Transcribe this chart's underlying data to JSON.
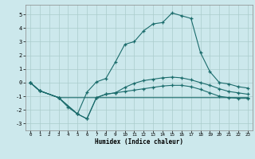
{
  "title": "",
  "xlabel": "Humidex (Indice chaleur)",
  "background_color": "#cce8ec",
  "grid_color": "#aacccc",
  "line_color": "#1a6b6b",
  "xlim": [
    -0.5,
    23.5
  ],
  "ylim": [
    -3.5,
    5.7
  ],
  "xticks": [
    0,
    1,
    2,
    3,
    4,
    5,
    6,
    7,
    8,
    9,
    10,
    11,
    12,
    13,
    14,
    15,
    16,
    17,
    18,
    19,
    20,
    21,
    22,
    23
  ],
  "yticks": [
    -3,
    -2,
    -1,
    0,
    1,
    2,
    3,
    4,
    5
  ],
  "line1_x": [
    0,
    1,
    3,
    4,
    5,
    6,
    7,
    8,
    9,
    10,
    11,
    12,
    13,
    14,
    15,
    16,
    17,
    18,
    19,
    20,
    21,
    22,
    23
  ],
  "line1_y": [
    0.0,
    -0.6,
    -1.1,
    -1.8,
    -2.3,
    -0.7,
    0.05,
    0.3,
    1.5,
    2.8,
    3.0,
    3.8,
    4.3,
    4.4,
    5.1,
    4.9,
    4.7,
    2.2,
    0.8,
    0.0,
    -0.1,
    -0.3,
    -0.4
  ],
  "line2_x": [
    0,
    1,
    3,
    5,
    6,
    7,
    8,
    9,
    10,
    11,
    12,
    13,
    14,
    15,
    16,
    17,
    18,
    19,
    20,
    21,
    22,
    23
  ],
  "line2_y": [
    0.0,
    -0.6,
    -1.1,
    -2.3,
    -2.65,
    -1.1,
    -0.85,
    -0.75,
    -0.65,
    -0.55,
    -0.45,
    -0.35,
    -0.25,
    -0.2,
    -0.2,
    -0.3,
    -0.5,
    -0.75,
    -1.0,
    -1.1,
    -1.15,
    -1.15
  ],
  "line3_x": [
    0,
    1,
    3,
    5,
    6,
    7,
    8,
    9,
    10,
    11,
    12,
    13,
    14,
    15,
    16,
    17,
    18,
    19,
    20,
    21,
    22,
    23
  ],
  "line3_y": [
    0.0,
    -0.6,
    -1.1,
    -2.3,
    -2.65,
    -1.1,
    -0.85,
    -0.75,
    -0.35,
    -0.05,
    0.15,
    0.25,
    0.35,
    0.4,
    0.35,
    0.2,
    0.0,
    -0.2,
    -0.45,
    -0.65,
    -0.75,
    -0.85
  ],
  "line4_x": [
    0,
    1,
    3,
    23
  ],
  "line4_y": [
    0.0,
    -0.6,
    -1.1,
    -1.1
  ]
}
